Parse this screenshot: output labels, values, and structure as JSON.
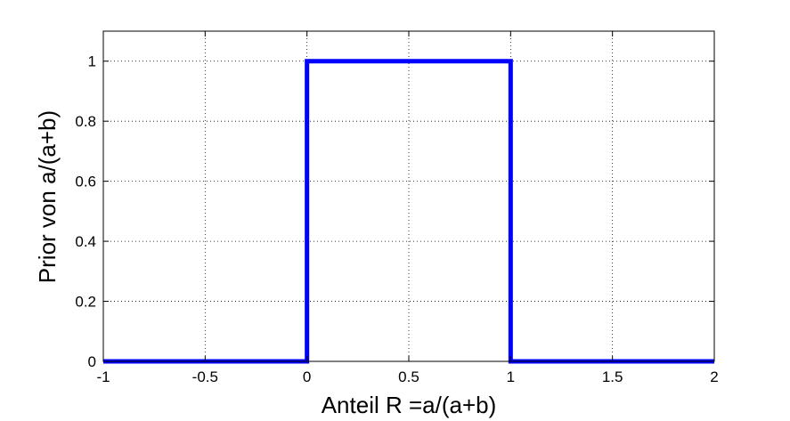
{
  "chart_data": {
    "type": "line",
    "title": "",
    "xlabel": "Anteil R =a/(a+b)",
    "ylabel": "Prior von a/(a+b)",
    "xlim": [
      -1,
      2
    ],
    "ylim": [
      0,
      1.1
    ],
    "grid": true,
    "xticks": [
      -1,
      -0.5,
      0,
      0.5,
      1,
      1.5,
      2
    ],
    "xtick_labels": [
      "-1",
      "-0.5",
      "0",
      "0.5",
      "1",
      "1.5",
      "2"
    ],
    "yticks": [
      0,
      0.2,
      0.4,
      0.6,
      0.8,
      1
    ],
    "ytick_labels": [
      "0",
      "0.2",
      "0.4",
      "0.6",
      "0.8",
      "1"
    ],
    "series": [
      {
        "color": "#0000ff",
        "x": [
          -1,
          0,
          0,
          1,
          1,
          2
        ],
        "y": [
          0,
          0,
          1,
          1,
          0,
          0
        ]
      }
    ]
  }
}
